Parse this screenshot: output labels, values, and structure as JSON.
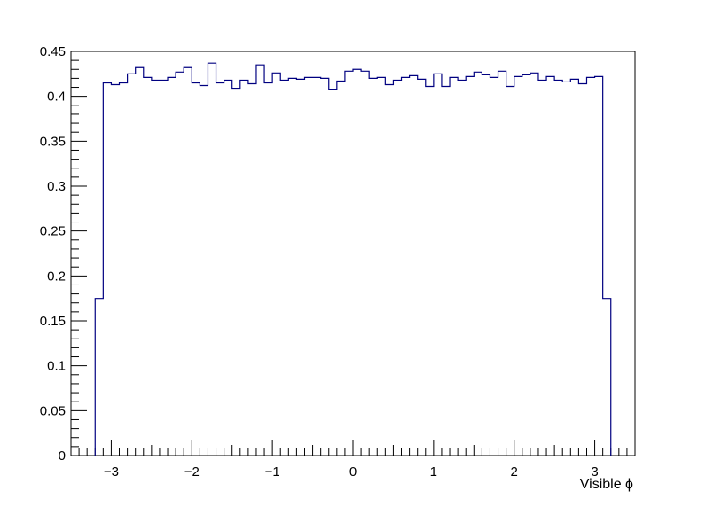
{
  "chart_data": {
    "type": "histogram",
    "xlabel": "Visible ϕ",
    "ylabel": "",
    "xlim": [
      -3.5,
      3.5
    ],
    "ylim": [
      0,
      0.45
    ],
    "x_ticks": [
      -3,
      -2,
      -1,
      0,
      1,
      2,
      3
    ],
    "x_tick_labels": [
      "−3",
      "−2",
      "−1",
      "0",
      "1",
      "2",
      "3"
    ],
    "y_ticks": [
      0,
      0.05,
      0.1,
      0.15,
      0.2,
      0.25,
      0.3,
      0.35,
      0.4,
      0.45
    ],
    "y_tick_labels": [
      "0",
      "0.05",
      "0.1",
      "0.15",
      "0.2",
      "0.25",
      "0.3",
      "0.35",
      "0.4",
      "0.45"
    ],
    "line_color": "#000080",
    "grid": false,
    "bin_start": -3.2,
    "bin_width": 0.1,
    "values": [
      0.175,
      0.415,
      0.413,
      0.415,
      0.425,
      0.432,
      0.421,
      0.418,
      0.418,
      0.421,
      0.427,
      0.432,
      0.415,
      0.412,
      0.437,
      0.415,
      0.418,
      0.409,
      0.418,
      0.414,
      0.435,
      0.415,
      0.426,
      0.418,
      0.42,
      0.419,
      0.421,
      0.421,
      0.42,
      0.408,
      0.417,
      0.428,
      0.43,
      0.428,
      0.42,
      0.421,
      0.413,
      0.418,
      0.421,
      0.423,
      0.419,
      0.411,
      0.425,
      0.411,
      0.421,
      0.418,
      0.422,
      0.427,
      0.424,
      0.421,
      0.428,
      0.411,
      0.422,
      0.424,
      0.426,
      0.418,
      0.422,
      0.418,
      0.416,
      0.419,
      0.414,
      0.421,
      0.422,
      0.175
    ]
  }
}
